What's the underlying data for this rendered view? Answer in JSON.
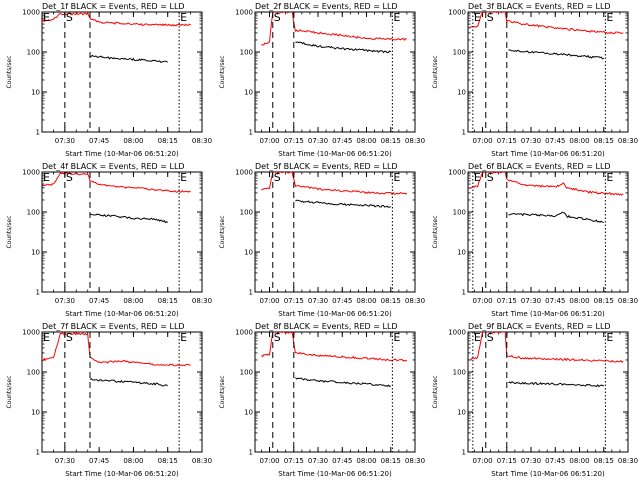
{
  "chart_data": [
    {
      "type": "line",
      "title": "Det_1f BLACK = Events, RED = LLD",
      "ylabel": "Counts/sec",
      "xlabel": "Start Time (10-Mar-06 06:51:20)",
      "x_ticks": [
        "07:30",
        "07:45",
        "08:00",
        "08:15",
        "08:30"
      ],
      "y_ticks": [
        "1",
        "10",
        "100",
        "1000"
      ],
      "yscale": "log",
      "xlim": [
        "07:20",
        "08:30"
      ],
      "ylim": [
        1,
        1000
      ],
      "markers": [
        {
          "label": "E",
          "time": "07:20"
        },
        {
          "label": "S",
          "time": "07:30"
        },
        {
          "label": "E",
          "time": "08:20"
        }
      ],
      "series": [
        {
          "color": "#ff0000",
          "points": [
            [
              "07:20",
              600
            ],
            [
              "07:25",
              650
            ],
            [
              "07:28",
              900
            ],
            [
              "07:31",
              900
            ],
            [
              "07:40",
              900
            ],
            [
              "07:41",
              700
            ],
            [
              "07:45",
              550
            ],
            [
              "07:55",
              520
            ],
            [
              "08:05",
              480
            ],
            [
              "08:15",
              470
            ],
            [
              "08:25",
              470
            ]
          ]
        },
        {
          "color": "#000000",
          "points": [
            [
              "07:41",
              80
            ],
            [
              "07:50",
              70
            ],
            [
              "08:00",
              65
            ],
            [
              "08:10",
              60
            ],
            [
              "08:15",
              55
            ]
          ]
        }
      ]
    },
    {
      "type": "line",
      "title": "Det_2f BLACK = Events, RED = LLD",
      "ylabel": "Counts/sec",
      "xlabel": "Start Time (10-Mar-06 06:51:20)",
      "x_ticks": [
        "07:00",
        "07:15",
        "07:30",
        "07:45",
        "08:00",
        "08:15",
        "08:30"
      ],
      "y_ticks": [
        "1",
        "10",
        "100",
        "1000"
      ],
      "yscale": "log",
      "xlim": [
        "06:51",
        "08:30"
      ],
      "ylim": [
        1,
        1000
      ],
      "markers": [
        {
          "label": "S",
          "time": "07:02"
        },
        {
          "label": "E",
          "time": "08:16"
        }
      ],
      "series": [
        {
          "color": "#ff0000",
          "points": [
            [
              "06:55",
              150
            ],
            [
              "07:00",
              180
            ],
            [
              "07:02",
              1000
            ],
            [
              "07:14",
              1000
            ],
            [
              "07:16",
              350
            ],
            [
              "07:30",
              300
            ],
            [
              "07:45",
              260
            ],
            [
              "08:00",
              220
            ],
            [
              "08:15",
              210
            ],
            [
              "08:25",
              210
            ]
          ]
        },
        {
          "color": "#000000",
          "points": [
            [
              "07:16",
              180
            ],
            [
              "07:30",
              140
            ],
            [
              "07:45",
              120
            ],
            [
              "08:00",
              110
            ],
            [
              "08:15",
              100
            ]
          ]
        }
      ]
    },
    {
      "type": "line",
      "title": "Det_3f BLACK = Events, RED = LLD",
      "ylabel": "Counts/sec",
      "xlabel": "Start Time (10-Mar-06 06:51:20)",
      "x_ticks": [
        "07:00",
        "07:15",
        "07:30",
        "07:45",
        "08:00",
        "08:15",
        "08:30"
      ],
      "y_ticks": [
        "1",
        "10",
        "100",
        "1000"
      ],
      "yscale": "log",
      "xlim": [
        "06:51",
        "08:30"
      ],
      "ylim": [
        1,
        1000
      ],
      "markers": [
        {
          "label": "E",
          "time": "06:54"
        },
        {
          "label": "S",
          "time": "07:02"
        },
        {
          "label": "E",
          "time": "08:16"
        }
      ],
      "series": [
        {
          "color": "#ff0000",
          "points": [
            [
              "06:52",
              400
            ],
            [
              "06:57",
              450
            ],
            [
              "07:00",
              1000
            ],
            [
              "07:14",
              1000
            ],
            [
              "07:15",
              600
            ],
            [
              "07:25",
              500
            ],
            [
              "07:45",
              400
            ],
            [
              "08:00",
              350
            ],
            [
              "08:15",
              310
            ],
            [
              "08:27",
              300
            ]
          ]
        },
        {
          "color": "#000000",
          "points": [
            [
              "07:16",
              110
            ],
            [
              "07:30",
              100
            ],
            [
              "07:45",
              90
            ],
            [
              "08:00",
              80
            ],
            [
              "08:15",
              70
            ]
          ]
        }
      ]
    },
    {
      "type": "line",
      "title": "Det_4f BLACK = Events, RED = LLD",
      "ylabel": "Counts/sec",
      "xlabel": "Start Time (10-Mar-06 06:51:20)",
      "x_ticks": [
        "07:30",
        "07:45",
        "08:00",
        "08:15",
        "08:30"
      ],
      "y_ticks": [
        "1",
        "10",
        "100",
        "1000"
      ],
      "yscale": "log",
      "xlim": [
        "07:20",
        "08:30"
      ],
      "ylim": [
        1,
        1000
      ],
      "markers": [
        {
          "label": "E",
          "time": "07:20"
        },
        {
          "label": "S",
          "time": "07:30"
        },
        {
          "label": "E",
          "time": "08:20"
        }
      ],
      "series": [
        {
          "color": "#ff0000",
          "points": [
            [
              "07:20",
              450
            ],
            [
              "07:25",
              500
            ],
            [
              "07:28",
              900
            ],
            [
              "07:31",
              900
            ],
            [
              "07:40",
              900
            ],
            [
              "07:41",
              600
            ],
            [
              "07:45",
              500
            ],
            [
              "07:55",
              420
            ],
            [
              "08:05",
              380
            ],
            [
              "08:15",
              340
            ],
            [
              "08:25",
              320
            ]
          ]
        },
        {
          "color": "#000000",
          "points": [
            [
              "07:41",
              90
            ],
            [
              "07:50",
              80
            ],
            [
              "08:00",
              70
            ],
            [
              "08:10",
              65
            ],
            [
              "08:15",
              55
            ]
          ]
        }
      ]
    },
    {
      "type": "line",
      "title": "Det_5f BLACK = Events, RED = LLD",
      "ylabel": "Counts/sec",
      "xlabel": "Start Time (10-Mar-06 06:51:20)",
      "x_ticks": [
        "07:00",
        "07:15",
        "07:30",
        "07:45",
        "08:00",
        "08:15",
        "08:30"
      ],
      "y_ticks": [
        "1",
        "10",
        "100",
        "1000"
      ],
      "yscale": "log",
      "xlim": [
        "06:51",
        "08:30"
      ],
      "ylim": [
        1,
        1000
      ],
      "markers": [
        {
          "label": "S",
          "time": "07:02"
        },
        {
          "label": "E",
          "time": "08:16"
        }
      ],
      "series": [
        {
          "color": "#ff0000",
          "points": [
            [
              "06:55",
              350
            ],
            [
              "07:00",
              400
            ],
            [
              "07:02",
              1000
            ],
            [
              "07:14",
              1000
            ],
            [
              "07:16",
              450
            ],
            [
              "07:30",
              380
            ],
            [
              "07:45",
              340
            ],
            [
              "08:00",
              310
            ],
            [
              "08:15",
              290
            ],
            [
              "08:25",
              290
            ]
          ]
        },
        {
          "color": "#000000",
          "points": [
            [
              "07:16",
              190
            ],
            [
              "07:30",
              170
            ],
            [
              "07:45",
              155
            ],
            [
              "08:00",
              145
            ],
            [
              "08:15",
              135
            ]
          ]
        }
      ]
    },
    {
      "type": "line",
      "title": "Det_6f BLACK = Events, RED = LLD",
      "ylabel": "Counts/sec",
      "xlabel": "Start Time (10-Mar-06 06:51:20)",
      "x_ticks": [
        "07:00",
        "07:15",
        "07:30",
        "07:45",
        "08:00",
        "08:15",
        "08:30"
      ],
      "y_ticks": [
        "1",
        "10",
        "100",
        "1000"
      ],
      "yscale": "log",
      "xlim": [
        "06:51",
        "08:30"
      ],
      "ylim": [
        1,
        1000
      ],
      "markers": [
        {
          "label": "E",
          "time": "06:54"
        },
        {
          "label": "S",
          "time": "07:02"
        },
        {
          "label": "E",
          "time": "08:16"
        }
      ],
      "series": [
        {
          "color": "#ff0000",
          "points": [
            [
              "06:52",
              400
            ],
            [
              "06:57",
              450
            ],
            [
              "07:00",
              1000
            ],
            [
              "07:14",
              1000
            ],
            [
              "07:15",
              650
            ],
            [
              "07:25",
              480
            ],
            [
              "07:45",
              420
            ],
            [
              "07:50",
              520
            ],
            [
              "07:52",
              400
            ],
            [
              "08:05",
              320
            ],
            [
              "08:15",
              290
            ],
            [
              "08:27",
              280
            ]
          ]
        },
        {
          "color": "#000000",
          "points": [
            [
              "07:16",
              90
            ],
            [
              "07:30",
              85
            ],
            [
              "07:45",
              80
            ],
            [
              "07:50",
              100
            ],
            [
              "07:52",
              78
            ],
            [
              "08:05",
              65
            ],
            [
              "08:15",
              55
            ]
          ]
        }
      ]
    },
    {
      "type": "line",
      "title": "Det_7f BLACK = Events, RED = LLD",
      "ylabel": "Counts/sec",
      "xlabel": "Start Time (10-Mar-06 06:51:20)",
      "x_ticks": [
        "07:30",
        "07:45",
        "08:00",
        "08:15",
        "08:30"
      ],
      "y_ticks": [
        "1",
        "10",
        "100",
        "1000"
      ],
      "yscale": "log",
      "xlim": [
        "07:20",
        "08:30"
      ],
      "ylim": [
        1,
        1000
      ],
      "markers": [
        {
          "label": "E",
          "time": "07:20"
        },
        {
          "label": "S",
          "time": "07:30"
        },
        {
          "label": "E",
          "time": "08:20"
        }
      ],
      "series": [
        {
          "color": "#ff0000",
          "points": [
            [
              "07:20",
              200
            ],
            [
              "07:25",
              230
            ],
            [
              "07:28",
              900
            ],
            [
              "07:31",
              900
            ],
            [
              "07:40",
              900
            ],
            [
              "07:41",
              230
            ],
            [
              "07:45",
              170
            ],
            [
              "07:55",
              190
            ],
            [
              "08:05",
              160
            ],
            [
              "08:15",
              150
            ],
            [
              "08:25",
              150
            ]
          ]
        },
        {
          "color": "#000000",
          "points": [
            [
              "07:41",
              65
            ],
            [
              "07:50",
              60
            ],
            [
              "08:00",
              55
            ],
            [
              "08:10",
              50
            ],
            [
              "08:15",
              45
            ]
          ]
        }
      ]
    },
    {
      "type": "line",
      "title": "Det_8f BLACK = Events, RED = LLD",
      "ylabel": "Counts/sec",
      "xlabel": "Start Time (10-Mar-06 06:51:20)",
      "x_ticks": [
        "07:00",
        "07:15",
        "07:30",
        "07:45",
        "08:00",
        "08:15",
        "08:30"
      ],
      "y_ticks": [
        "1",
        "10",
        "100",
        "1000"
      ],
      "yscale": "log",
      "xlim": [
        "06:51",
        "08:30"
      ],
      "ylim": [
        1,
        1000
      ],
      "markers": [
        {
          "label": "S",
          "time": "07:02"
        },
        {
          "label": "E",
          "time": "08:16"
        }
      ],
      "series": [
        {
          "color": "#ff0000",
          "points": [
            [
              "06:55",
              250
            ],
            [
              "07:00",
              280
            ],
            [
              "07:02",
              1000
            ],
            [
              "07:14",
              1000
            ],
            [
              "07:16",
              300
            ],
            [
              "07:30",
              260
            ],
            [
              "07:45",
              240
            ],
            [
              "08:00",
              220
            ],
            [
              "08:15",
              200
            ],
            [
              "08:25",
              200
            ]
          ]
        },
        {
          "color": "#000000",
          "points": [
            [
              "07:16",
              70
            ],
            [
              "07:30",
              60
            ],
            [
              "07:45",
              55
            ],
            [
              "08:00",
              50
            ],
            [
              "08:15",
              45
            ]
          ]
        }
      ]
    },
    {
      "type": "line",
      "title": "Det_9f BLACK = Events, RED = LLD",
      "ylabel": "Counts/sec",
      "xlabel": "Start Time (10-Mar-06 06:51:20)",
      "x_ticks": [
        "07:00",
        "07:15",
        "07:30",
        "07:45",
        "08:00",
        "08:15",
        "08:30"
      ],
      "y_ticks": [
        "1",
        "10",
        "100",
        "1000"
      ],
      "yscale": "log",
      "xlim": [
        "06:51",
        "08:30"
      ],
      "ylim": [
        1,
        1000
      ],
      "markers": [
        {
          "label": "E",
          "time": "06:54"
        },
        {
          "label": "S",
          "time": "07:02"
        },
        {
          "label": "E",
          "time": "08:16"
        }
      ],
      "series": [
        {
          "color": "#ff0000",
          "points": [
            [
              "06:52",
              200
            ],
            [
              "06:57",
              230
            ],
            [
              "07:00",
              1000
            ],
            [
              "07:14",
              1000
            ],
            [
              "07:15",
              260
            ],
            [
              "07:25",
              220
            ],
            [
              "07:45",
              210
            ],
            [
              "08:00",
              200
            ],
            [
              "08:15",
              190
            ],
            [
              "08:27",
              185
            ]
          ]
        },
        {
          "color": "#000000",
          "points": [
            [
              "07:16",
              55
            ],
            [
              "07:30",
              52
            ],
            [
              "07:45",
              50
            ],
            [
              "08:00",
              48
            ],
            [
              "08:15",
              45
            ]
          ]
        }
      ]
    }
  ]
}
